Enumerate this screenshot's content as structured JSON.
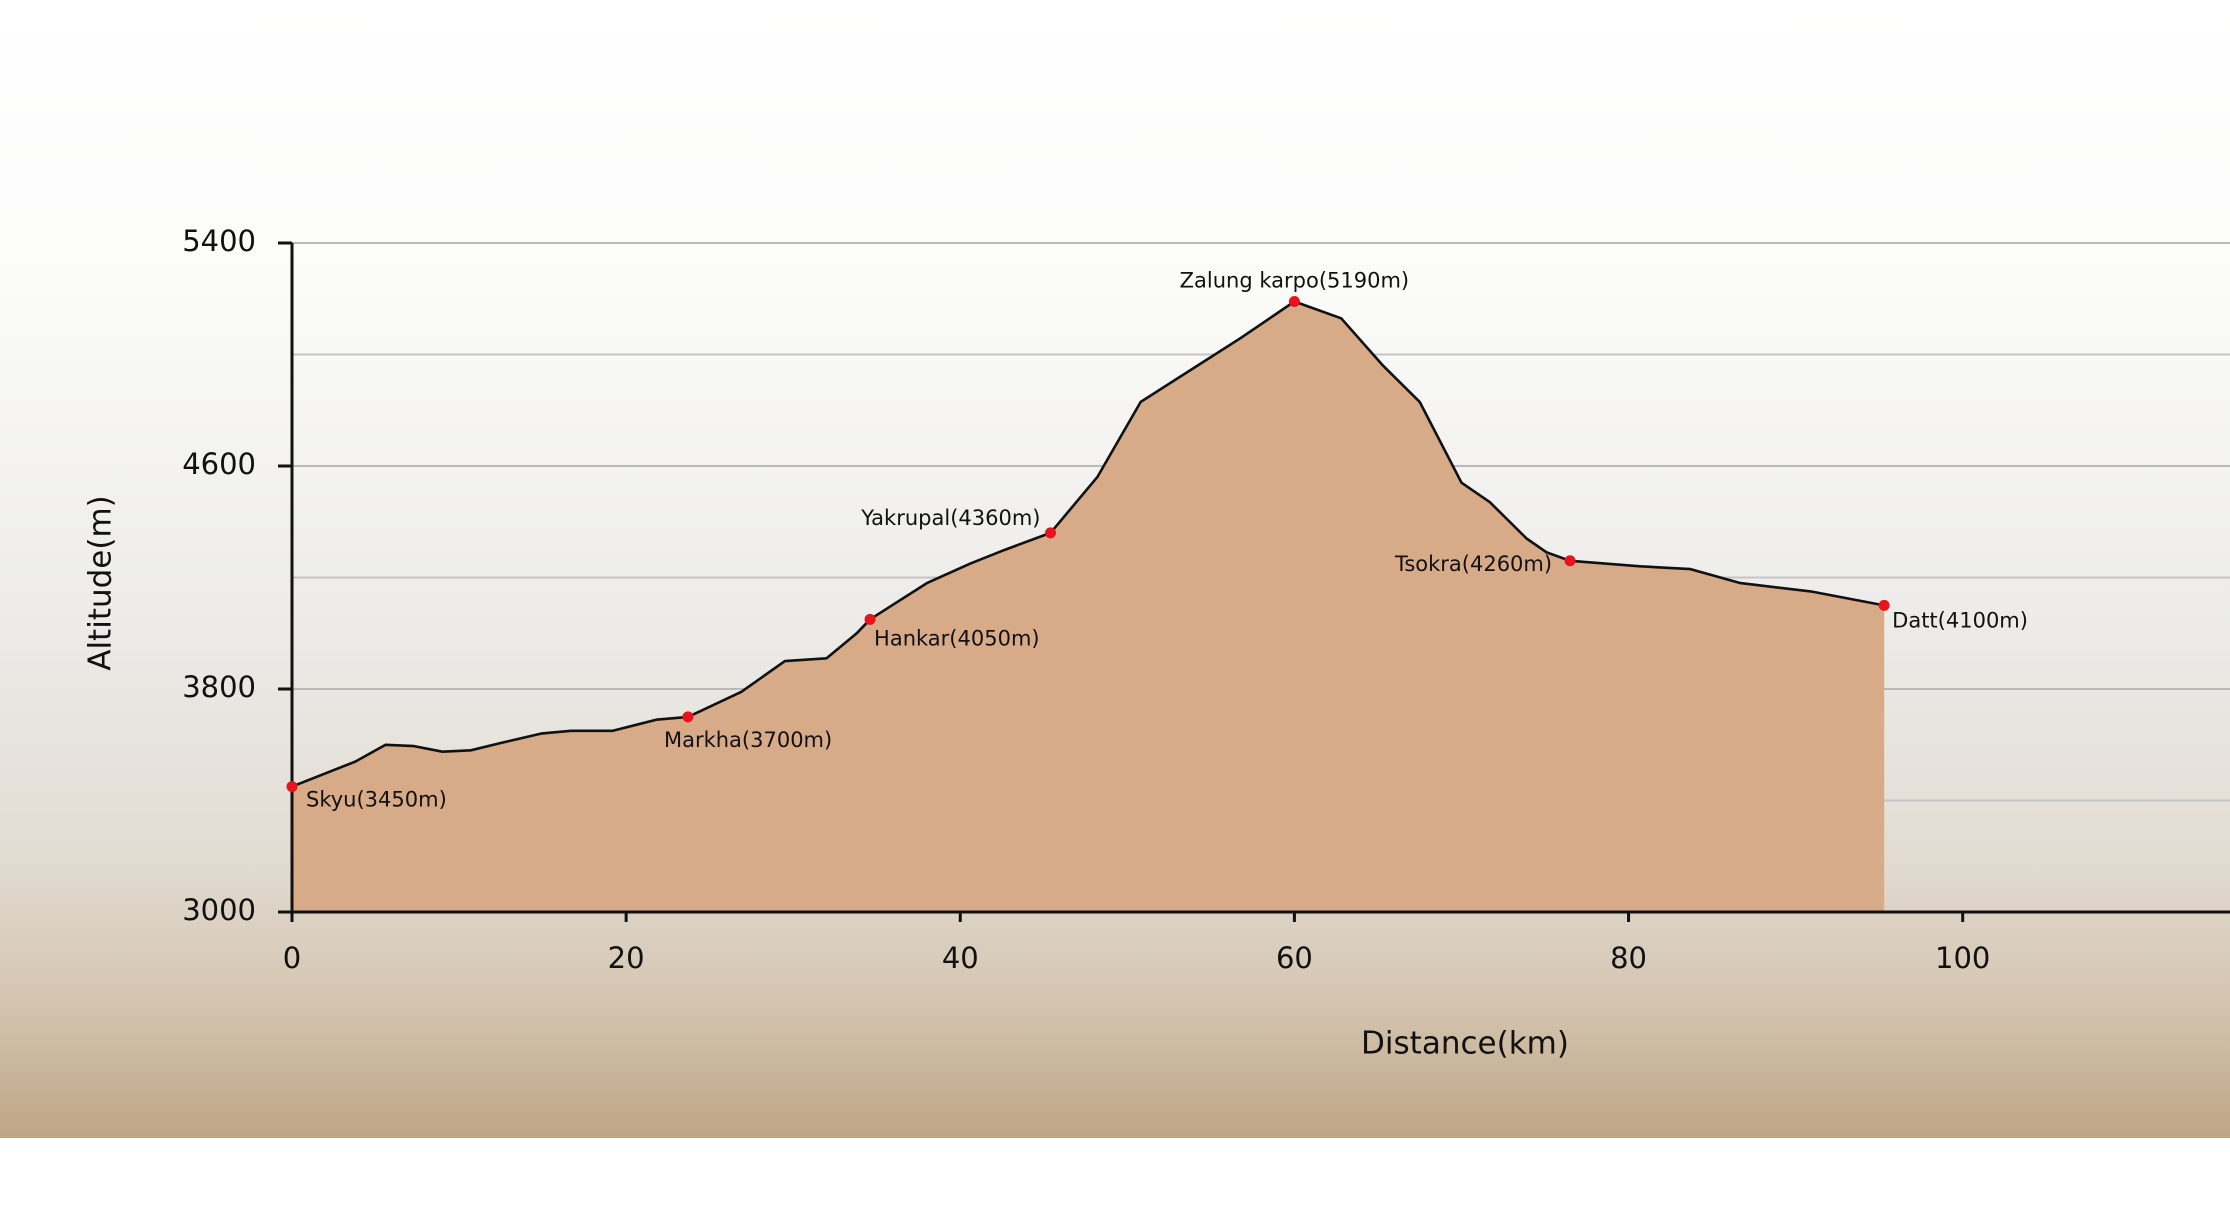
{
  "chart_data": {
    "type": "area",
    "x_label": "Distance(km)",
    "y_label": "Altitude(m)",
    "x": [
      0,
      3.8,
      5.6,
      7.3,
      9.0,
      10.7,
      12.4,
      14.9,
      16.7,
      19.2,
      21.8,
      23.7,
      26.9,
      29.5,
      32.0,
      33.8,
      34.6,
      38.0,
      40.6,
      42.7,
      45.4,
      48.2,
      50.8,
      54.2,
      56.8,
      60.0,
      62.8,
      65.3,
      67.5,
      70.0,
      71.7,
      73.9,
      75.1,
      76.5,
      80.7,
      83.7,
      86.7,
      90.9,
      95.3
    ],
    "values": [
      3450,
      3540,
      3600,
      3595,
      3575,
      3580,
      3605,
      3640,
      3650,
      3650,
      3690,
      3700,
      3790,
      3900,
      3910,
      4000,
      4050,
      4180,
      4250,
      4300,
      4360,
      4560,
      4830,
      4960,
      5060,
      5190,
      5130,
      4960,
      4830,
      4540,
      4470,
      4340,
      4290,
      4260,
      4240,
      4230,
      4180,
      4150,
      4100
    ],
    "color": "#d7aa88",
    "line_color": "#111111",
    "waypoints": {
      "x": [
        0,
        23.7,
        34.6,
        45.4,
        60.0,
        76.5,
        95.3
      ],
      "values": [
        3450,
        3700,
        4050,
        4360,
        5190,
        4260,
        4100
      ],
      "value_labels": [
        "Skyu(3450m)",
        "Markha(3700m)",
        "Hankar(4050m)",
        "Yakrupal(4360m)",
        "Zalung karpo(5190m)",
        "Tsokra(4260m)",
        "Datt(4100m)"
      ],
      "color": "#e8141c"
    },
    "xlim": [
      0,
      116
    ],
    "xticks": [
      0,
      20,
      40,
      60,
      80,
      100
    ],
    "ylim": [
      3000,
      5400
    ],
    "yticks": [
      3000,
      3800,
      4600,
      5400
    ],
    "ygrid_minor": [
      3400,
      4200,
      5000
    ],
    "grid": true
  }
}
